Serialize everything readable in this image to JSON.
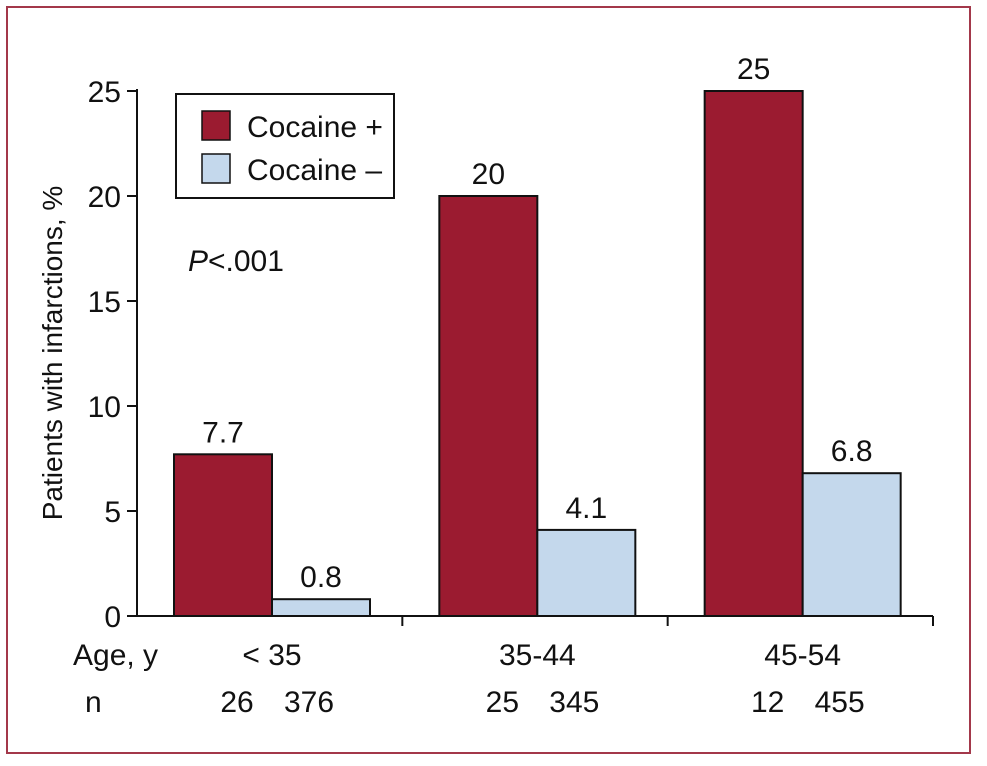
{
  "chart_data": {
    "type": "bar",
    "title": "",
    "ylabel": "Patients with infarctions, %",
    "xlabel": "",
    "ylim": [
      0,
      25
    ],
    "yticks": [
      "0",
      "5",
      "10",
      "15",
      "20",
      "25"
    ],
    "categories": [
      "< 35",
      "35-44",
      "45-54"
    ],
    "category_row_label": "Age, y",
    "n_row_label": "n",
    "n_values": [
      [
        "26",
        "376"
      ],
      [
        "25",
        "345"
      ],
      [
        "12",
        "455"
      ]
    ],
    "series": [
      {
        "name": "Cocaine +",
        "values": [
          7.7,
          20,
          25
        ],
        "labels": [
          "7.7",
          "20",
          "25"
        ],
        "color": "#9b1b30"
      },
      {
        "name": "Cocaine –",
        "values": [
          0.8,
          4.1,
          6.8
        ],
        "labels": [
          "0.8",
          "4.1",
          "6.8"
        ],
        "color": "#c4d8ec"
      }
    ],
    "annotation": {
      "italic": "P",
      "rest": "<.001"
    },
    "legend_position": "top-left",
    "grid": false,
    "frame_color": "#a3384a"
  }
}
